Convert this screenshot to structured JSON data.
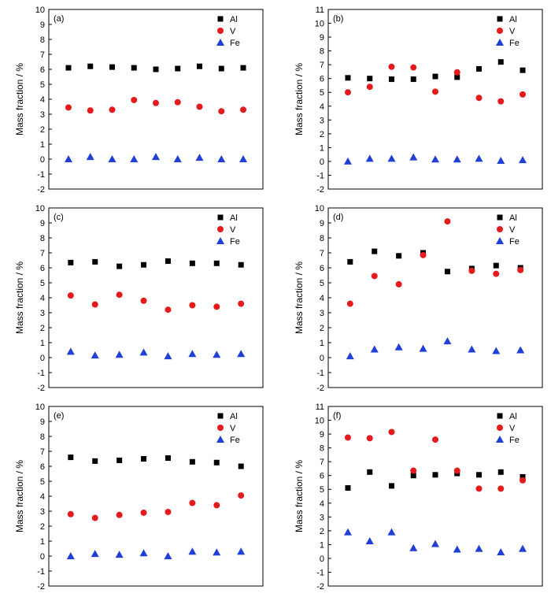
{
  "colors": {
    "Al": "#000000",
    "V": "#e41a1c",
    "Fe": "#1f3fd6",
    "axis": "#000000"
  },
  "marker_shapes": {
    "Al": "square",
    "V": "circle",
    "Fe": "triangle"
  },
  "chart_data": [
    {
      "type": "scatter",
      "panel_label": "(a)",
      "ylabel": "Mass fraction / %",
      "ylim": [
        -2,
        10
      ],
      "yticks": [
        "-2",
        "-1",
        "0",
        "1",
        "2",
        "3",
        "4",
        "5",
        "6",
        "7",
        "8",
        "9",
        "10"
      ],
      "grid": false,
      "legend_position": "top-right",
      "x": [
        1,
        2,
        3,
        4,
        5,
        6,
        7,
        8,
        9
      ],
      "series": [
        {
          "name": "Al",
          "values": [
            6.1,
            6.2,
            6.15,
            6.1,
            6.0,
            6.05,
            6.2,
            6.05,
            6.1
          ]
        },
        {
          "name": "V",
          "values": [
            3.45,
            3.25,
            3.3,
            3.95,
            3.75,
            3.8,
            3.5,
            3.2,
            3.3
          ]
        },
        {
          "name": "Fe",
          "values": [
            0.0,
            0.15,
            0.0,
            0.0,
            0.15,
            0.0,
            0.1,
            0.0,
            0.0
          ]
        }
      ]
    },
    {
      "type": "scatter",
      "panel_label": "(b)",
      "ylabel": "Mass fraction / %",
      "ylim": [
        -2,
        11
      ],
      "yticks": [
        "-2",
        "-1",
        "0",
        "1",
        "2",
        "3",
        "4",
        "5",
        "6",
        "7",
        "8",
        "9",
        "10",
        "11"
      ],
      "grid": false,
      "legend_position": "top-right",
      "x": [
        1,
        2,
        3,
        4,
        5,
        6,
        7,
        8,
        9
      ],
      "series": [
        {
          "name": "Al",
          "values": [
            6.05,
            6.0,
            5.95,
            5.95,
            6.15,
            6.1,
            6.7,
            7.2,
            6.6
          ]
        },
        {
          "name": "V",
          "values": [
            5.0,
            5.4,
            6.85,
            6.8,
            5.05,
            6.45,
            4.6,
            4.35,
            4.85
          ]
        },
        {
          "name": "Fe",
          "values": [
            0.0,
            0.2,
            0.2,
            0.3,
            0.15,
            0.15,
            0.2,
            0.05,
            0.1
          ]
        }
      ]
    },
    {
      "type": "scatter",
      "panel_label": "(c)",
      "ylabel": "Mass fraction / %",
      "ylim": [
        -2,
        10
      ],
      "yticks": [
        "-2",
        "-1",
        "0",
        "1",
        "2",
        "3",
        "4",
        "5",
        "6",
        "7",
        "8",
        "9",
        "10"
      ],
      "grid": false,
      "legend_position": "top-right",
      "x": [
        1,
        2,
        3,
        4,
        5,
        6,
        7,
        8
      ],
      "series": [
        {
          "name": "Al",
          "values": [
            6.35,
            6.4,
            6.1,
            6.2,
            6.45,
            6.3,
            6.3,
            6.2
          ]
        },
        {
          "name": "V",
          "values": [
            4.15,
            3.55,
            4.2,
            3.8,
            3.2,
            3.5,
            3.4,
            3.6
          ]
        },
        {
          "name": "Fe",
          "values": [
            0.4,
            0.15,
            0.2,
            0.35,
            0.1,
            0.25,
            0.2,
            0.25
          ]
        }
      ]
    },
    {
      "type": "scatter",
      "panel_label": "(d)",
      "ylabel": "Mass fraction / %",
      "ylim": [
        -2,
        10
      ],
      "yticks": [
        "-2",
        "-1",
        "0",
        "1",
        "2",
        "3",
        "4",
        "5",
        "6",
        "7",
        "8",
        "9",
        "10"
      ],
      "grid": false,
      "legend_position": "top-right",
      "x": [
        1,
        2,
        3,
        4,
        5,
        6,
        7,
        8
      ],
      "series": [
        {
          "name": "Al",
          "values": [
            6.4,
            7.1,
            6.8,
            7.0,
            5.75,
            5.95,
            6.15,
            6.0
          ]
        },
        {
          "name": "V",
          "values": [
            3.6,
            5.45,
            4.9,
            6.85,
            9.1,
            5.8,
            5.6,
            5.85
          ]
        },
        {
          "name": "Fe",
          "values": [
            0.1,
            0.55,
            0.7,
            0.6,
            1.1,
            0.55,
            0.45,
            0.5
          ]
        }
      ]
    },
    {
      "type": "scatter",
      "panel_label": "(e)",
      "ylabel": "Mass fraction / %",
      "ylim": [
        -2,
        10
      ],
      "yticks": [
        "-2",
        "-1",
        "0",
        "1",
        "2",
        "3",
        "4",
        "5",
        "6",
        "7",
        "8",
        "9",
        "10"
      ],
      "grid": false,
      "legend_position": "top-right",
      "x": [
        1,
        2,
        3,
        4,
        5,
        6,
        7,
        8
      ],
      "series": [
        {
          "name": "Al",
          "values": [
            6.6,
            6.35,
            6.4,
            6.5,
            6.55,
            6.3,
            6.25,
            6.0
          ]
        },
        {
          "name": "V",
          "values": [
            2.8,
            2.55,
            2.75,
            2.9,
            2.95,
            3.55,
            3.4,
            4.05
          ]
        },
        {
          "name": "Fe",
          "values": [
            0.0,
            0.15,
            0.1,
            0.2,
            0.0,
            0.3,
            0.25,
            0.3
          ]
        }
      ]
    },
    {
      "type": "scatter",
      "panel_label": "(f)",
      "ylabel": "Mass fraction / %",
      "ylim": [
        -2,
        11
      ],
      "yticks": [
        "-2",
        "-1",
        "0",
        "1",
        "2",
        "3",
        "4",
        "5",
        "6",
        "7",
        "8",
        "9",
        "10",
        "11"
      ],
      "grid": false,
      "legend_position": "top-right",
      "x": [
        1,
        2,
        3,
        4,
        5,
        6,
        7,
        8,
        9
      ],
      "series": [
        {
          "name": "Al",
          "values": [
            5.1,
            6.25,
            5.25,
            6.0,
            6.05,
            6.15,
            6.05,
            6.25,
            5.9
          ]
        },
        {
          "name": "V",
          "values": [
            8.75,
            8.7,
            9.15,
            6.35,
            8.6,
            6.35,
            5.05,
            5.05,
            5.65
          ]
        },
        {
          "name": "Fe",
          "values": [
            1.9,
            1.25,
            1.9,
            0.75,
            1.05,
            0.65,
            0.7,
            0.45,
            0.7
          ]
        }
      ]
    }
  ]
}
